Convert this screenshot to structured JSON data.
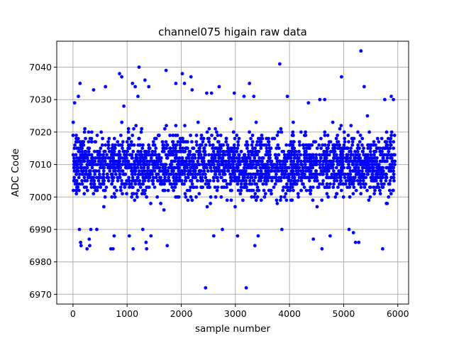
{
  "chart_data": {
    "type": "scatter",
    "title": "channel075 higain raw data",
    "xlabel": "sample number",
    "ylabel": "ADC Code",
    "xlim": [
      -300,
      6200
    ],
    "ylim": [
      6967,
      7048
    ],
    "xticks": [
      0,
      1000,
      2000,
      3000,
      4000,
      5000,
      6000
    ],
    "yticks": [
      6970,
      6980,
      6990,
      7000,
      7010,
      7020,
      7030,
      7040
    ],
    "grid": true,
    "marker_color": "#0000ff",
    "series": [
      {
        "points": [
          [
            30,
            7029
          ],
          [
            60,
            7018
          ],
          [
            100,
            7031
          ],
          [
            120,
            6990
          ],
          [
            130,
            7035
          ],
          [
            140,
            6986
          ],
          [
            150,
            6985
          ],
          [
            260,
            6984
          ],
          [
            300,
            6987
          ],
          [
            310,
            6985
          ],
          [
            330,
            6990
          ],
          [
            380,
            7033
          ],
          [
            440,
            6990
          ],
          [
            520,
            7020
          ],
          [
            600,
            7034
          ],
          [
            700,
            6984
          ],
          [
            740,
            6984
          ],
          [
            760,
            6988
          ],
          [
            860,
            7038
          ],
          [
            900,
            7037
          ],
          [
            940,
            7028
          ],
          [
            1040,
            6988
          ],
          [
            1100,
            7035
          ],
          [
            1110,
            6984
          ],
          [
            1150,
            7034
          ],
          [
            1200,
            7031
          ],
          [
            1220,
            7040
          ],
          [
            1290,
            6990
          ],
          [
            1330,
            7036
          ],
          [
            1350,
            6986
          ],
          [
            1360,
            6984
          ],
          [
            1400,
            7034
          ],
          [
            1440,
            6988
          ],
          [
            1680,
            6996
          ],
          [
            1720,
            7039
          ],
          [
            1740,
            6985
          ],
          [
            1900,
            7035
          ],
          [
            2020,
            7038
          ],
          [
            2060,
            7035
          ],
          [
            2180,
            7037
          ],
          [
            2200,
            7033
          ],
          [
            2450,
            6972
          ],
          [
            2470,
            7032
          ],
          [
            2560,
            7032
          ],
          [
            2600,
            6988
          ],
          [
            2700,
            7034
          ],
          [
            2760,
            6990
          ],
          [
            2980,
            7032
          ],
          [
            3040,
            6988
          ],
          [
            3160,
            7031
          ],
          [
            3200,
            6972
          ],
          [
            3260,
            7035
          ],
          [
            3340,
            7031
          ],
          [
            3360,
            6985
          ],
          [
            3420,
            6988
          ],
          [
            3820,
            7041
          ],
          [
            3860,
            6990
          ],
          [
            3960,
            7031
          ],
          [
            4350,
            7029
          ],
          [
            4440,
            6987
          ],
          [
            4560,
            7030
          ],
          [
            4600,
            6984
          ],
          [
            4650,
            7030
          ],
          [
            4750,
            6988
          ],
          [
            4960,
            7037
          ],
          [
            5100,
            6990
          ],
          [
            5180,
            6989
          ],
          [
            5220,
            6986
          ],
          [
            5280,
            6986
          ],
          [
            5320,
            7045
          ],
          [
            5380,
            7034
          ],
          [
            5440,
            7025
          ],
          [
            5720,
            6984
          ],
          [
            5760,
            7030
          ],
          [
            5880,
            7031
          ],
          [
            5920,
            7030
          ]
        ],
        "dense_band": {
          "x_min": 0,
          "x_max": 5950,
          "y_min": 6992,
          "y_max": 7028,
          "center": 7010,
          "count": 2600
        }
      }
    ]
  }
}
